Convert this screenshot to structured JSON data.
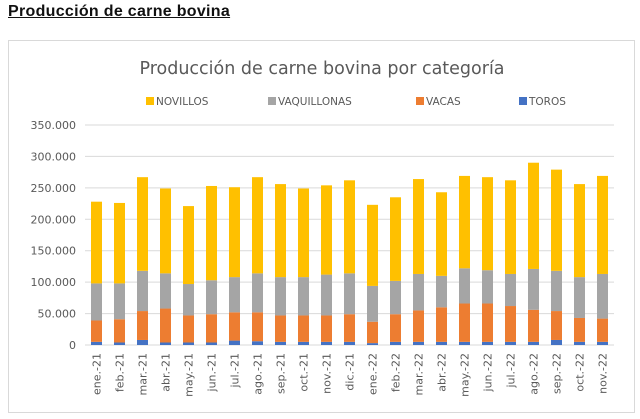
{
  "page": {
    "heading": "Producción de carne bovina"
  },
  "chart_data": {
    "type": "bar",
    "stacked": true,
    "title": "Producción de carne bovina por categoría",
    "xlabel": "",
    "ylabel": "",
    "ylim": [
      0,
      350000
    ],
    "yticks": [
      0,
      50000,
      100000,
      150000,
      200000,
      250000,
      300000,
      350000
    ],
    "ytick_labels": [
      "0",
      "50.000",
      "100.000",
      "150.000",
      "200.000",
      "250.000",
      "300.000",
      "350.000"
    ],
    "grid": true,
    "legend_position": "top",
    "legend": [
      "NOVILLOS",
      "VAQUILLONAS",
      "VACAS",
      "TOROS"
    ],
    "categories": [
      "ene.-21",
      "feb.-21",
      "mar.-21",
      "abr.-21",
      "may.-21",
      "jun.-21",
      "jul.-21",
      "ago.-21",
      "sep.-21",
      "oct.-21",
      "nov.-21",
      "dic.-21",
      "ene.-22",
      "feb.-22",
      "mar.-22",
      "abr.-22",
      "may.-22",
      "jun.-22",
      "jul.-22",
      "ago.-22",
      "sep.-22",
      "oct.-22",
      "nov.-22"
    ],
    "series": [
      {
        "name": "TOROS",
        "color": "#4472c4",
        "values": [
          5000,
          4000,
          8000,
          4000,
          4000,
          4000,
          7000,
          6000,
          5000,
          5000,
          5000,
          5000,
          3000,
          5000,
          5000,
          5000,
          5000,
          5000,
          5000,
          5000,
          8000,
          5000,
          5000
        ]
      },
      {
        "name": "VACAS",
        "color": "#ed7d31",
        "values": [
          34000,
          37000,
          46000,
          54000,
          43000,
          45000,
          45000,
          46000,
          42000,
          42000,
          42000,
          44000,
          34000,
          44000,
          50000,
          55000,
          61000,
          61000,
          57000,
          51000,
          46000,
          38000,
          37000
        ]
      },
      {
        "name": "VAQUILLONAS",
        "color": "#a5a5a5",
        "values": [
          59000,
          57000,
          64000,
          56000,
          50000,
          54000,
          56000,
          62000,
          61000,
          61000,
          65000,
          65000,
          57000,
          53000,
          58000,
          50000,
          56000,
          53000,
          51000,
          65000,
          64000,
          65000,
          71000
        ]
      },
      {
        "name": "NOVILLOS",
        "color": "#ffc000",
        "values": [
          130000,
          128000,
          149000,
          135000,
          124000,
          150000,
          143000,
          153000,
          148000,
          141000,
          142000,
          148000,
          129000,
          133000,
          151000,
          133000,
          147000,
          148000,
          149000,
          169000,
          161000,
          148000,
          156000
        ]
      }
    ]
  }
}
